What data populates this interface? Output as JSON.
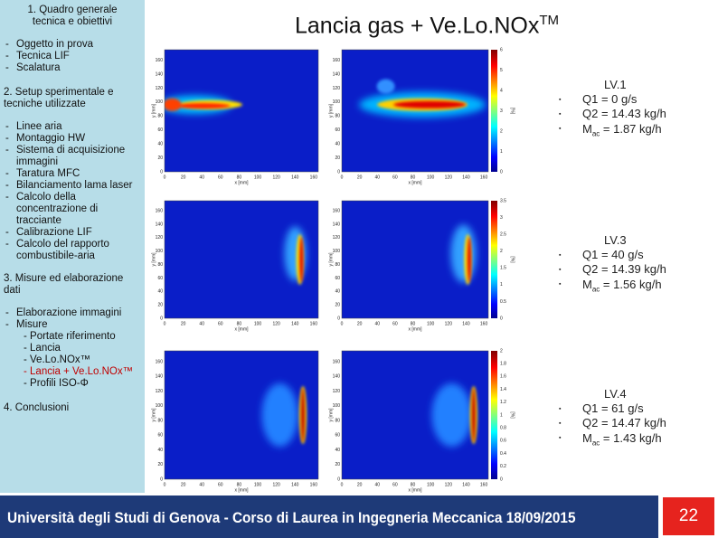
{
  "sidebar": {
    "sections": [
      {
        "heading": "1. Quadro generale tecnica e obiettivi",
        "items": [
          "Oggetto in prova",
          "Tecnica LIF",
          "Scalatura"
        ]
      },
      {
        "heading": "2. Setup sperimentale e tecniche utilizzate",
        "items": [
          "Linee aria",
          "Montaggio HW",
          "Sistema di acquisizione immagini",
          "Taratura MFC",
          "Bilanciamento lama laser",
          "Calcolo della concentrazione di tracciante",
          "Calibrazione LIF",
          "Calcolo del rapporto combustibile-aria"
        ]
      },
      {
        "heading": "3. Misure ed elaborazione dati",
        "items": [
          "Elaborazione immagini",
          "Misure"
        ],
        "subitems": [
          {
            "text": "- Portate riferimento"
          },
          {
            "text": "- Lancia"
          },
          {
            "text": "- Ve.Lo.NOx™"
          },
          {
            "text": "- Lancia + Ve.Lo.NOx™",
            "color": "#c00000"
          },
          {
            "text": "- Profili ISO-Φ"
          }
        ]
      },
      {
        "heading": "4. Conclusioni",
        "items": []
      }
    ]
  },
  "title": "Lancia gas + Ve.Lo.NOx",
  "title_sup": "TM",
  "images": {
    "x_label": "x [mm]",
    "y_label": "y [mm]",
    "colorbar_label": "[%]",
    "xlim": [
      0,
      165
    ],
    "ylim": [
      0,
      175
    ],
    "x_ticks": [
      0,
      20,
      40,
      60,
      80,
      100,
      120,
      140,
      160
    ],
    "y_ticks": [
      0,
      20,
      40,
      60,
      80,
      100,
      120,
      140,
      160
    ],
    "rows": [
      {
        "colorbar_lim": [
          0,
          6
        ],
        "colorbar_ticks": [
          0,
          1,
          2,
          3,
          4,
          5,
          6
        ]
      },
      {
        "colorbar_lim": [
          0,
          3.5
        ],
        "colorbar_ticks": [
          0,
          0.5,
          1,
          1.5,
          2,
          2.5,
          3,
          3.5
        ]
      },
      {
        "colorbar_lim": [
          0,
          2
        ],
        "colorbar_ticks": [
          0,
          0.2,
          0.4,
          0.6,
          0.8,
          1,
          1.2,
          1.4,
          1.6,
          1.8,
          2
        ]
      }
    ]
  },
  "levels": [
    {
      "label": "LV.1",
      "items": [
        {
          "text": "Q1 = 0 g/s"
        },
        {
          "text": "Q2 = 14.43 kg/h"
        },
        {
          "text": "M",
          "sub": "ac",
          "rest": " = 1.87 kg/h"
        }
      ]
    },
    {
      "label": "LV.3",
      "items": [
        {
          "text": "Q1 = 40 g/s"
        },
        {
          "text": "Q2 = 14.39 kg/h"
        },
        {
          "text": "M",
          "sub": "ac",
          "rest": " = 1.56 kg/h"
        }
      ]
    },
    {
      "label": "LV.4",
      "items": [
        {
          "text": "Q1 = 61 g/s"
        },
        {
          "text": "Q2 = 14.47 kg/h"
        },
        {
          "text": "M",
          "sub": "ac",
          "rest": " = 1.43 kg/h"
        }
      ]
    }
  ],
  "footer": {
    "text": "Università degli Studi di Genova - Corso di Laurea in Ingegneria Meccanica 18/09/2015",
    "page": "22"
  }
}
